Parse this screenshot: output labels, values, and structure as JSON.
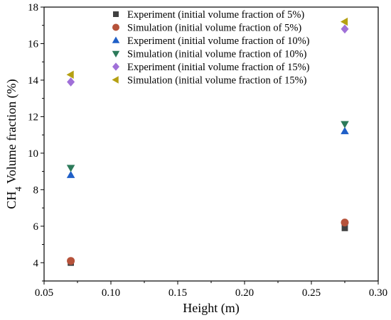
{
  "chart_data": {
    "type": "scatter",
    "title": "",
    "xlabel": "Height (m)",
    "ylabel": {
      "prefix": "CH",
      "sub": "4",
      "suffix": " Volume fraction (%)"
    },
    "xlim": [
      0.05,
      0.3
    ],
    "ylim": [
      3,
      18
    ],
    "xticks": [
      "0.05",
      "0.10",
      "0.15",
      "0.20",
      "0.25",
      "0.30"
    ],
    "yticks": [
      "4",
      "6",
      "8",
      "10",
      "12",
      "14",
      "16",
      "18"
    ],
    "grid": false,
    "legend_position": "top-right",
    "series": [
      {
        "name": "Experiment (initial volume fraction of 5%)",
        "marker": "square",
        "color": "#404040",
        "x": [
          0.07,
          0.275
        ],
        "y": [
          4.0,
          5.9
        ]
      },
      {
        "name": "Simulation (initial volume fraction of 5%)",
        "marker": "circle",
        "color": "#b6523a",
        "x": [
          0.07,
          0.275
        ],
        "y": [
          4.1,
          6.2
        ]
      },
      {
        "name": "Experiment (initial volume fraction of 10%)",
        "marker": "triangle-up",
        "color": "#1f5fc7",
        "x": [
          0.07,
          0.275
        ],
        "y": [
          8.8,
          11.2
        ]
      },
      {
        "name": "Simulation (initial volume fraction of 10%)",
        "marker": "triangle-down",
        "color": "#2c7a5a",
        "x": [
          0.07,
          0.275
        ],
        "y": [
          9.2,
          11.6
        ]
      },
      {
        "name": "Experiment (initial volume fraction of 15%)",
        "marker": "diamond",
        "color": "#a070d8",
        "x": [
          0.07,
          0.275
        ],
        "y": [
          13.9,
          16.8
        ]
      },
      {
        "name": "Simulation (initial volume fraction of 15%)",
        "marker": "triangle-left",
        "color": "#b5a012",
        "x": [
          0.07,
          0.275
        ],
        "y": [
          14.3,
          17.2
        ]
      }
    ]
  }
}
